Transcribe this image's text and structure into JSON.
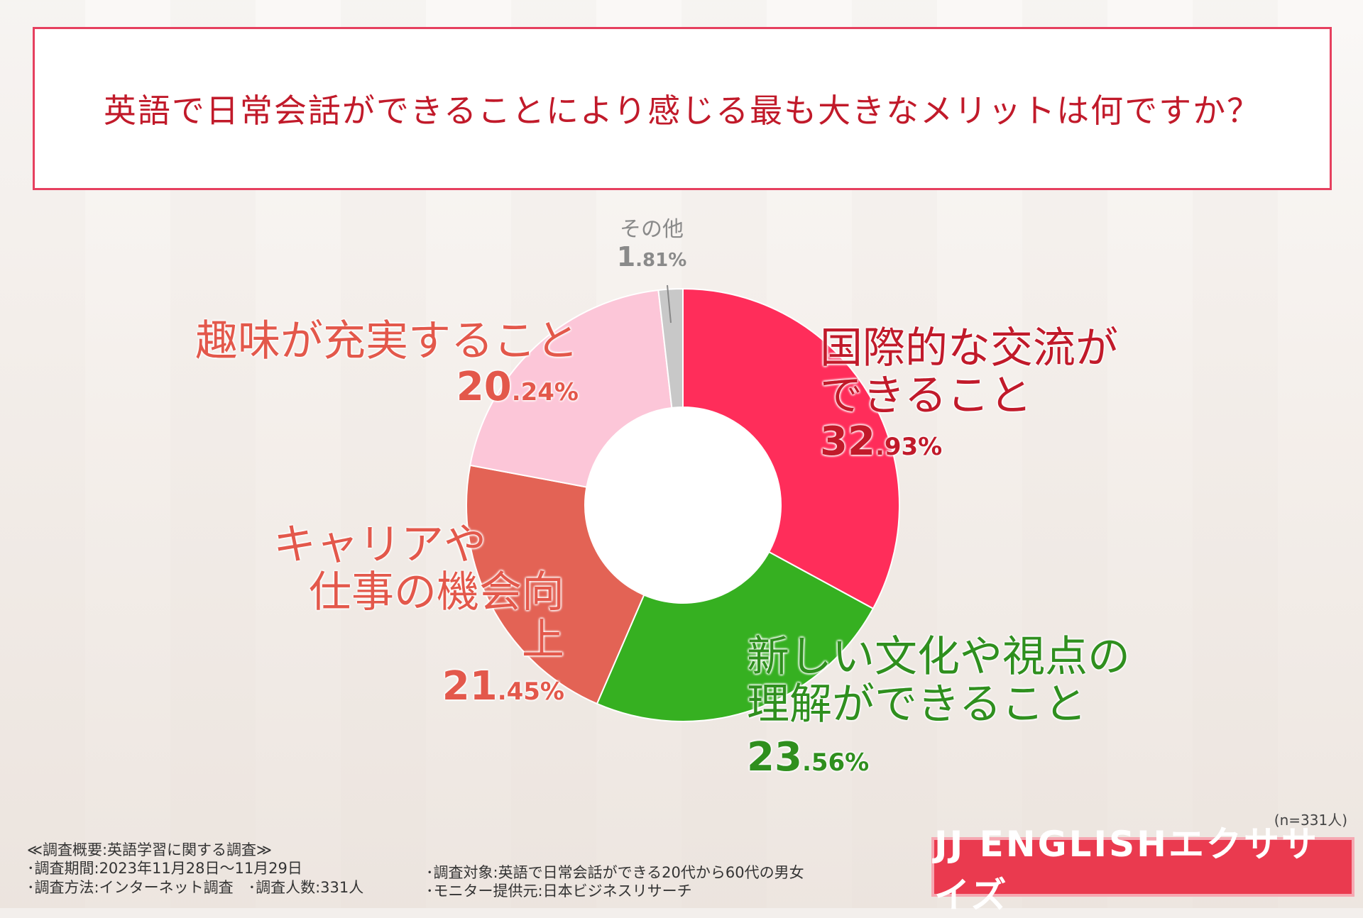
{
  "title": "英語で日常会話ができることにより感じる最も大きなメリットは何ですか？",
  "chart_data": {
    "type": "pie",
    "variant": "donut",
    "categories": [
      "国際的な交流ができること",
      "新しい文化や視点の理解ができること",
      "キャリアや仕事の機会向上",
      "趣味が充実すること",
      "その他"
    ],
    "values": [
      32.93,
      23.56,
      21.45,
      20.24,
      1.81
    ],
    "colors": [
      "#ff2d5a",
      "#36b021",
      "#e36355",
      "#fcc6d8",
      "#c8c8c8"
    ],
    "labels": [
      {
        "lines": [
          "国際的な交流が",
          "できること"
        ],
        "int": "32",
        "dec": ".93%",
        "color": "#c11a2a"
      },
      {
        "lines": [
          "新しい文化や視点の",
          "理解ができること"
        ],
        "int": "23",
        "dec": ".56%",
        "color": "#2f8f1e"
      },
      {
        "lines": [
          "キャリアや",
          "仕事の機会向上"
        ],
        "int": "21",
        "dec": ".45%",
        "color": "#e3584b"
      },
      {
        "lines": [
          "趣味が充実すること"
        ],
        "int": "20",
        "dec": ".24%",
        "color": "#e3584b"
      },
      {
        "lines": [
          "その他"
        ],
        "int": "1",
        "dec": ".81%",
        "color": "#8a8a8a"
      }
    ]
  },
  "sample_note": "(n=331人)",
  "footnotes": {
    "heading": "≪調査概要:英語学習に関する調査≫",
    "period": "･調査期間:2023年11月28日〜11月29日",
    "method": "･調査方法:インターネット調査　･調査人数:331人",
    "target": "･調査対象:英語で日常会話ができる20代から60代の男女",
    "provider": "･モニター提供元:日本ビジネスリサーチ"
  },
  "logo": "JJ ENGLISHエクササイズ"
}
